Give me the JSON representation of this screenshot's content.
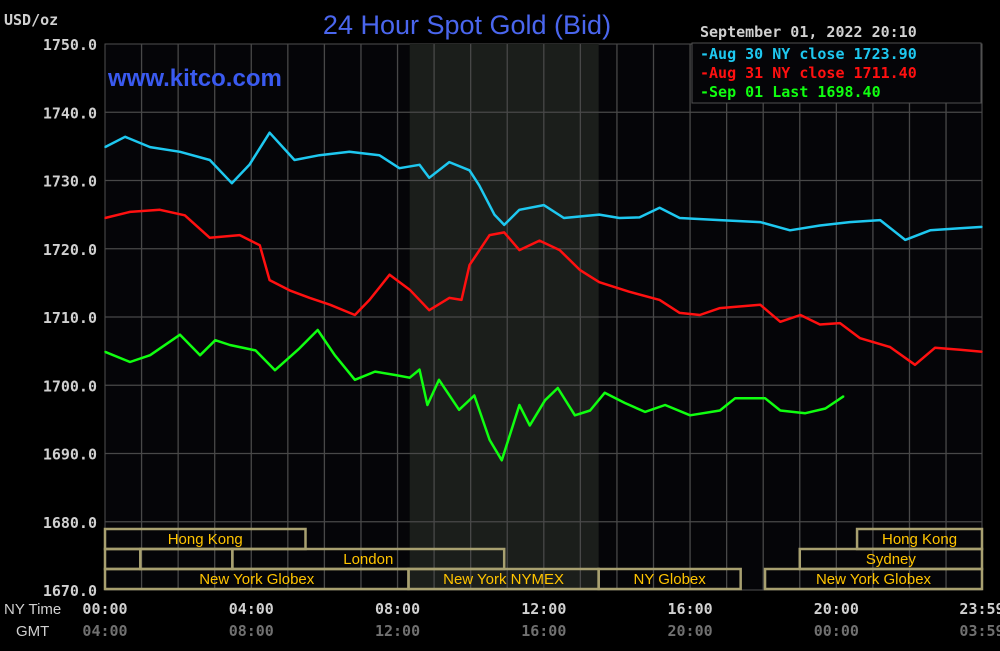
{
  "chart_data": {
    "type": "line",
    "title": "24 Hour Spot Gold (Bid)",
    "watermark": "www.kitco.com",
    "timestamp": "September 01, 2022 20:10",
    "ylabel": "USD/oz",
    "ylim": [
      1670,
      1750
    ],
    "yticks": [
      "1750.0",
      "1740.0",
      "1730.0",
      "1720.0",
      "1710.0",
      "1700.0",
      "1690.0",
      "1680.0",
      "1670.0"
    ],
    "x_row_labels": {
      "ny": "NY Time",
      "gmt": "GMT"
    },
    "xticks_ny": [
      "00:00",
      "04:00",
      "08:00",
      "12:00",
      "16:00",
      "20:00",
      "23:59"
    ],
    "xticks_gmt": [
      "04:00",
      "08:00",
      "12:00",
      "16:00",
      "20:00",
      "00:00",
      "03:59"
    ],
    "grid": true,
    "shaded_period": [
      "08:20",
      "13:30"
    ],
    "legend_position": "top-right",
    "legend": [
      {
        "marker": "-",
        "label": "Aug 30 NY close 1723.90",
        "color": "#1ec8f0"
      },
      {
        "marker": "-",
        "label": "Aug 31 NY close 1711.40",
        "color": "#ff1010"
      },
      {
        "marker": "-",
        "label": "Sep 01 Last 1698.40",
        "color": "#10ff10"
      }
    ],
    "series": [
      {
        "name": "Aug 30",
        "color": "#1ec8f0",
        "x": [
          "00:00",
          "00:33",
          "01:14",
          "02:03",
          "02:52",
          "03:28",
          "03:57",
          "04:30",
          "05:11",
          "05:52",
          "06:41",
          "07:30",
          "08:03",
          "08:36",
          "08:52",
          "09:25",
          "09:58",
          "10:14",
          "10:39",
          "10:55",
          "11:20",
          "12:00",
          "12:33",
          "13:31",
          "14:04",
          "14:37",
          "15:10",
          "15:43",
          "16:49",
          "17:55",
          "18:44",
          "19:33",
          "20:22",
          "21:12",
          "21:53",
          "22:34",
          "23:23",
          "23:59"
        ],
        "y": [
          1734.9,
          1736.4,
          1734.9,
          1734.2,
          1733.0,
          1729.6,
          1732.3,
          1737.0,
          1733.0,
          1733.7,
          1734.2,
          1733.7,
          1731.8,
          1732.3,
          1730.4,
          1732.7,
          1731.5,
          1729.3,
          1725.0,
          1723.5,
          1725.7,
          1726.4,
          1724.5,
          1725.0,
          1724.5,
          1724.6,
          1726.0,
          1724.5,
          1724.2,
          1723.9,
          1722.7,
          1723.4,
          1723.9,
          1724.2,
          1721.3,
          1722.7,
          1723.0,
          1723.2
        ]
      },
      {
        "name": "Aug 31",
        "color": "#ff1010",
        "x": [
          "00:00",
          "00:41",
          "01:30",
          "02:11",
          "02:52",
          "03:41",
          "04:14",
          "04:30",
          "05:03",
          "05:36",
          "06:09",
          "06:50",
          "07:14",
          "07:47",
          "08:20",
          "08:52",
          "09:25",
          "09:45",
          "09:58",
          "10:31",
          "10:55",
          "11:20",
          "11:53",
          "12:26",
          "12:59",
          "13:31",
          "14:20",
          "15:10",
          "15:43",
          "16:16",
          "16:49",
          "17:55",
          "18:28",
          "19:01",
          "19:33",
          "20:06",
          "20:39",
          "21:28",
          "22:09",
          "22:42",
          "23:23",
          "23:59"
        ],
        "y": [
          1724.5,
          1725.4,
          1725.7,
          1724.9,
          1721.6,
          1722.0,
          1720.5,
          1715.4,
          1713.9,
          1712.8,
          1711.8,
          1710.3,
          1712.5,
          1716.2,
          1714.0,
          1711.0,
          1712.8,
          1712.5,
          1717.6,
          1722.0,
          1722.4,
          1719.8,
          1721.2,
          1719.8,
          1716.9,
          1715.1,
          1713.7,
          1712.5,
          1710.6,
          1710.3,
          1711.3,
          1711.8,
          1709.3,
          1710.3,
          1708.9,
          1709.1,
          1706.9,
          1705.6,
          1703.0,
          1705.5,
          1705.2,
          1704.9
        ]
      },
      {
        "name": "Sep 01",
        "color": "#10ff10",
        "x": [
          "00:00",
          "00:41",
          "01:14",
          "02:03",
          "02:36",
          "03:01",
          "03:25",
          "04:07",
          "04:39",
          "05:19",
          "05:49",
          "06:17",
          "06:50",
          "07:23",
          "07:56",
          "08:20",
          "08:36",
          "08:49",
          "09:08",
          "09:41",
          "10:06",
          "10:31",
          "10:51",
          "11:20",
          "11:37",
          "12:02",
          "12:23",
          "12:51",
          "13:16",
          "13:40",
          "14:13",
          "14:46",
          "15:19",
          "16:00",
          "16:49",
          "17:14",
          "18:03",
          "18:28",
          "19:09",
          "19:42",
          "20:12"
        ],
        "y": [
          1704.9,
          1703.4,
          1704.4,
          1707.4,
          1704.4,
          1706.6,
          1705.9,
          1705.1,
          1702.2,
          1705.4,
          1708.1,
          1704.4,
          1700.8,
          1702.0,
          1701.5,
          1701.1,
          1702.3,
          1697.1,
          1700.8,
          1696.4,
          1698.5,
          1692.0,
          1689.0,
          1697.1,
          1694.1,
          1697.8,
          1699.6,
          1695.6,
          1696.3,
          1698.9,
          1697.4,
          1696.1,
          1697.1,
          1695.6,
          1696.3,
          1698.1,
          1698.1,
          1696.3,
          1695.9,
          1696.6,
          1698.4
        ]
      }
    ],
    "sessions": [
      {
        "label": "Hong Kong",
        "row": 1,
        "start": "00:00",
        "end": "05:29"
      },
      {
        "label": "Hong Kong",
        "row": 1,
        "start": "20:34",
        "end": "23:59"
      },
      {
        "label": "",
        "row": 2,
        "start": "00:00",
        "end": "00:58"
      },
      {
        "label": "",
        "row": 2,
        "start": "00:58",
        "end": "03:29"
      },
      {
        "label": "London",
        "row": 2,
        "start": "03:29",
        "end": "10:55"
      },
      {
        "label": "Sydney",
        "row": 2,
        "start": "19:00",
        "end": "23:59"
      },
      {
        "label": "New York Globex",
        "row": 3,
        "start": "00:00",
        "end": "08:18"
      },
      {
        "label": "New York NYMEX",
        "row": 3,
        "start": "08:18",
        "end": "13:30"
      },
      {
        "label": "NY Globex",
        "row": 3,
        "start": "13:30",
        "end": "17:23"
      },
      {
        "label": "New York Globex",
        "row": 3,
        "start": "18:03",
        "end": "23:59"
      }
    ]
  }
}
